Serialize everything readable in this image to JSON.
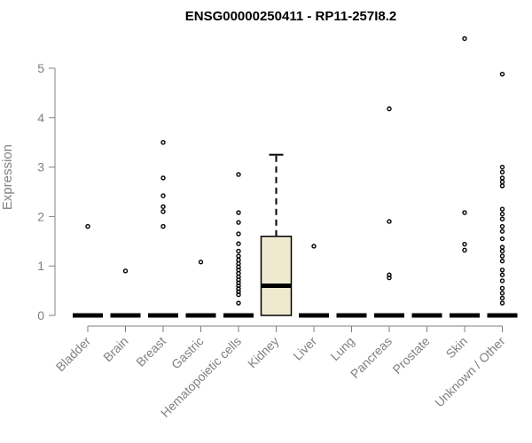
{
  "chart_data": {
    "type": "box",
    "title": "ENSG00000250411 - RP11-257I8.2",
    "xlabel": "",
    "ylabel": "Expression",
    "ylim": [
      0,
      5.8
    ],
    "yticks": [
      0,
      1,
      2,
      3,
      4,
      5
    ],
    "grid": false,
    "colors": {
      "box_fill": "#efe9d0",
      "axis": "#808080",
      "marks": "#000000"
    },
    "categories": [
      "Bladder",
      "Brain",
      "Breast",
      "Gastric",
      "Hematopoietic cells",
      "Kidney",
      "Liver",
      "Lung",
      "Pancreas",
      "Prostate",
      "Skin",
      "Unknown / Other"
    ],
    "boxes": [
      {
        "q1": 0,
        "median": 0,
        "q3": 0,
        "whisker_low": 0,
        "whisker_high": 0,
        "outliers": [
          1.8
        ]
      },
      {
        "q1": 0,
        "median": 0,
        "q3": 0,
        "whisker_low": 0,
        "whisker_high": 0,
        "outliers": [
          0.9
        ]
      },
      {
        "q1": 0,
        "median": 0,
        "q3": 0,
        "whisker_low": 0,
        "whisker_high": 0,
        "outliers": [
          3.5,
          2.78,
          2.42,
          2.2,
          2.1,
          1.8
        ]
      },
      {
        "q1": 0,
        "median": 0,
        "q3": 0,
        "whisker_low": 0,
        "whisker_high": 0,
        "outliers": [
          1.08
        ]
      },
      {
        "q1": 0,
        "median": 0,
        "q3": 0,
        "whisker_low": 0,
        "whisker_high": 0,
        "outliers": [
          2.85,
          2.08,
          1.88,
          1.65,
          1.45,
          1.3,
          1.2,
          1.12,
          1.05,
          0.98,
          0.92,
          0.85,
          0.78,
          0.72,
          0.66,
          0.6,
          0.54,
          0.48,
          0.42,
          0.25
        ]
      },
      {
        "q1": 0,
        "median": 0.6,
        "q3": 1.6,
        "whisker_low": 0,
        "whisker_high": 3.25,
        "outliers": []
      },
      {
        "q1": 0,
        "median": 0,
        "q3": 0,
        "whisker_low": 0,
        "whisker_high": 0,
        "outliers": [
          1.4
        ]
      },
      {
        "q1": 0,
        "median": 0,
        "q3": 0,
        "whisker_low": 0,
        "whisker_high": 0,
        "outliers": []
      },
      {
        "q1": 0,
        "median": 0,
        "q3": 0,
        "whisker_low": 0,
        "whisker_high": 0,
        "outliers": [
          4.18,
          1.9,
          0.82,
          0.76
        ]
      },
      {
        "q1": 0,
        "median": 0,
        "q3": 0,
        "whisker_low": 0,
        "whisker_high": 0,
        "outliers": []
      },
      {
        "q1": 0,
        "median": 0,
        "q3": 0,
        "whisker_low": 0,
        "whisker_high": 0,
        "outliers": [
          5.6,
          2.08,
          1.44,
          1.32
        ]
      },
      {
        "q1": 0,
        "median": 0,
        "q3": 0,
        "whisker_low": 0,
        "whisker_high": 0,
        "outliers": [
          4.88,
          3.0,
          2.9,
          2.78,
          2.7,
          2.62,
          2.15,
          2.05,
          1.95,
          1.8,
          1.7,
          1.55,
          1.38,
          1.3,
          1.2,
          1.1,
          0.92,
          0.82,
          0.7,
          0.55,
          0.45,
          0.35,
          0.25
        ]
      }
    ]
  }
}
